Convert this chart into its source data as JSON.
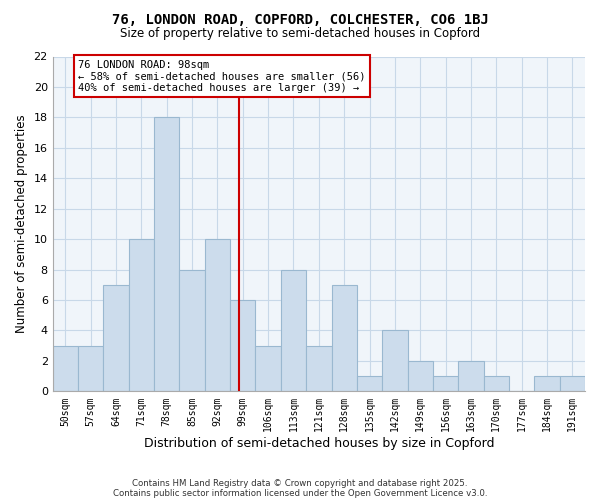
{
  "title": "76, LONDON ROAD, COPFORD, COLCHESTER, CO6 1BJ",
  "subtitle": "Size of property relative to semi-detached houses in Copford",
  "xlabel": "Distribution of semi-detached houses by size in Copford",
  "ylabel": "Number of semi-detached properties",
  "bar_color": "#ccdcec",
  "bar_edge_color": "#9ab8d0",
  "categories": [
    "50sqm",
    "57sqm",
    "64sqm",
    "71sqm",
    "78sqm",
    "85sqm",
    "92sqm",
    "99sqm",
    "106sqm",
    "113sqm",
    "121sqm",
    "128sqm",
    "135sqm",
    "142sqm",
    "149sqm",
    "156sqm",
    "163sqm",
    "170sqm",
    "177sqm",
    "184sqm",
    "191sqm"
  ],
  "values": [
    3,
    3,
    7,
    10,
    18,
    8,
    10,
    6,
    3,
    8,
    3,
    7,
    1,
    4,
    2,
    1,
    2,
    1,
    0,
    1,
    1
  ],
  "ylim": [
    0,
    22
  ],
  "yticks": [
    0,
    2,
    4,
    6,
    8,
    10,
    12,
    14,
    16,
    18,
    20,
    22
  ],
  "vline_x_index": 6.86,
  "vline_color": "#cc0000",
  "annotation_title": "76 LONDON ROAD: 98sqm",
  "annotation_line1": "← 58% of semi-detached houses are smaller (56)",
  "annotation_line2": "40% of semi-detached houses are larger (39) →",
  "annotation_box_color": "#ffffff",
  "annotation_box_edge": "#cc0000",
  "background_color": "#ffffff",
  "plot_bg_color": "#f0f5fa",
  "grid_color": "#c8d8e8",
  "footnote1": "Contains HM Land Registry data © Crown copyright and database right 2025.",
  "footnote2": "Contains public sector information licensed under the Open Government Licence v3.0."
}
